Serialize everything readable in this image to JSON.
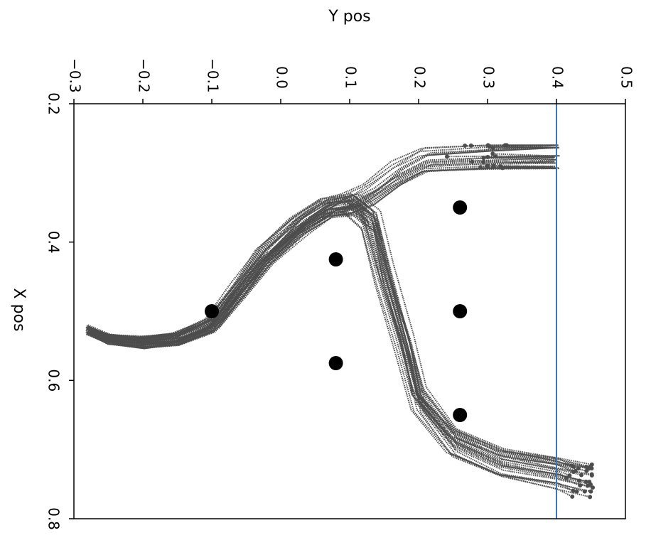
{
  "chart_data": {
    "type": "line",
    "title": "",
    "xlabel": "Y pos",
    "ylabel": "X pos",
    "x_axis_position": "top",
    "y_axis_inverted": true,
    "xlim": [
      -0.3,
      0.5
    ],
    "ylim": [
      0.2,
      0.8
    ],
    "x_ticks": [
      "−0.3",
      "−0.2",
      "−0.1",
      "0.0",
      "0.1",
      "0.2",
      "0.3",
      "0.4",
      "0.5"
    ],
    "y_ticks": [
      "0.2",
      "0.4",
      "0.6",
      "0.8"
    ],
    "grid": false,
    "colors": {
      "trajectory": "#4d4d4d",
      "obstacle": "#000000",
      "goal_line": "#3a78b8"
    },
    "goal_line": {
      "orientation": "vertical",
      "x": 0.4
    },
    "obstacles": [
      {
        "x": -0.1,
        "y": 0.5
      },
      {
        "x": 0.08,
        "y": 0.425
      },
      {
        "x": 0.08,
        "y": 0.575
      },
      {
        "x": 0.26,
        "y": 0.35
      },
      {
        "x": 0.26,
        "y": 0.5
      },
      {
        "x": 0.26,
        "y": 0.65
      }
    ],
    "series_groups": [
      {
        "group": "upper",
        "count": 20,
        "mean_path": [
          [
            -0.28,
            0.527
          ],
          [
            -0.25,
            0.54
          ],
          [
            -0.2,
            0.545
          ],
          [
            -0.15,
            0.54
          ],
          [
            -0.1,
            0.52
          ],
          [
            -0.06,
            0.47
          ],
          [
            -0.02,
            0.42
          ],
          [
            0.03,
            0.375
          ],
          [
            0.07,
            0.35
          ],
          [
            0.1,
            0.345
          ],
          [
            0.13,
            0.33
          ],
          [
            0.17,
            0.3
          ],
          [
            0.21,
            0.28
          ],
          [
            0.3,
            0.275
          ],
          [
            0.4,
            0.272
          ],
          [
            0.49,
            0.27
          ]
        ],
        "end_x_range": [
          0.255,
          0.345
        ]
      },
      {
        "group": "lower",
        "count": 30,
        "mean_path": [
          [
            -0.28,
            0.527
          ],
          [
            -0.25,
            0.54
          ],
          [
            -0.2,
            0.545
          ],
          [
            -0.15,
            0.54
          ],
          [
            -0.1,
            0.52
          ],
          [
            -0.06,
            0.47
          ],
          [
            -0.02,
            0.42
          ],
          [
            0.03,
            0.375
          ],
          [
            0.07,
            0.35
          ],
          [
            0.1,
            0.345
          ],
          [
            0.13,
            0.37
          ],
          [
            0.15,
            0.45
          ],
          [
            0.18,
            0.55
          ],
          [
            0.2,
            0.63
          ],
          [
            0.25,
            0.69
          ],
          [
            0.32,
            0.72
          ],
          [
            0.4,
            0.735
          ],
          [
            0.45,
            0.745
          ]
        ],
        "end_x_range": [
          0.415,
          0.465
        ]
      }
    ]
  }
}
